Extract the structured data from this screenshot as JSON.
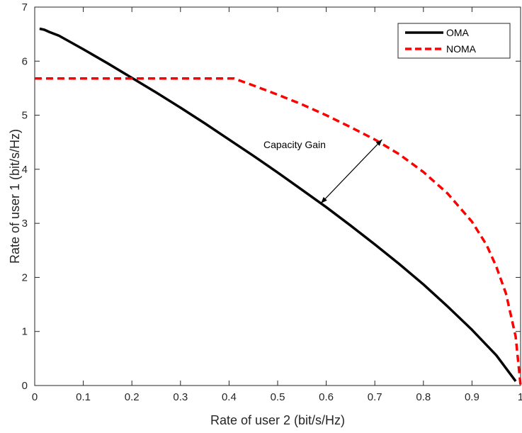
{
  "chart_data": {
    "type": "line",
    "xlabel": "Rate of user 2 (bit/s/Hz)",
    "ylabel": "Rate of user 1 (bit/s/Hz)",
    "xlim": [
      0,
      1
    ],
    "ylim": [
      0,
      7
    ],
    "xticks": [
      "0",
      "0.1",
      "0.2",
      "0.3",
      "0.4",
      "0.5",
      "0.6",
      "0.7",
      "0.8",
      "0.9",
      "1"
    ],
    "yticks": [
      "0",
      "1",
      "2",
      "3",
      "4",
      "5",
      "6",
      "7"
    ],
    "grid": false,
    "legend_position": "top-right",
    "series": [
      {
        "name": "OMA",
        "color": "#000000",
        "style": "solid",
        "x": [
          0.01,
          0.02,
          0.03,
          0.05,
          0.1,
          0.15,
          0.2,
          0.25,
          0.3,
          0.35,
          0.4,
          0.45,
          0.5,
          0.55,
          0.6,
          0.65,
          0.7,
          0.75,
          0.8,
          0.85,
          0.9,
          0.95,
          0.99
        ],
        "y": [
          6.6,
          6.58,
          6.54,
          6.47,
          6.22,
          5.96,
          5.69,
          5.42,
          5.14,
          4.85,
          4.55,
          4.25,
          3.94,
          3.62,
          3.3,
          2.96,
          2.61,
          2.25,
          1.87,
          1.46,
          1.03,
          0.56,
          0.08
        ]
      },
      {
        "name": "NOMA",
        "color": "#ff0000",
        "style": "dashed",
        "x": [
          0.0,
          0.1,
          0.2,
          0.3,
          0.41,
          0.45,
          0.5,
          0.55,
          0.6,
          0.65,
          0.7,
          0.75,
          0.8,
          0.85,
          0.9,
          0.93,
          0.95,
          0.97,
          0.98,
          0.99,
          1.0
        ],
        "y": [
          5.68,
          5.68,
          5.68,
          5.68,
          5.68,
          5.55,
          5.38,
          5.2,
          5.0,
          4.78,
          4.55,
          4.28,
          3.95,
          3.55,
          3.03,
          2.6,
          2.2,
          1.7,
          1.3,
          0.9,
          0.0
        ]
      }
    ],
    "annotations": [
      {
        "text": "Capacity Gain",
        "arrow_from": [
          0.59,
          3.38
        ],
        "arrow_to": [
          0.715,
          4.55
        ]
      }
    ]
  }
}
